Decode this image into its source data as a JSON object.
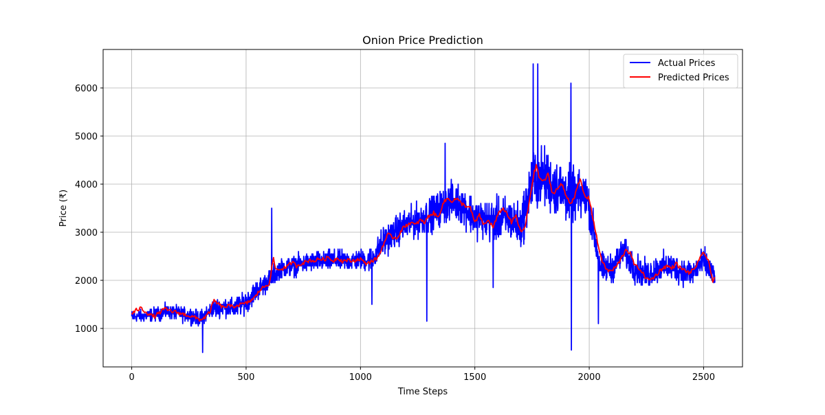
{
  "chart_data": {
    "type": "line",
    "title": "Onion Price Prediction",
    "xlabel": "Time Steps",
    "ylabel": "Price (₹)",
    "xlim": [
      -125,
      2670
    ],
    "ylim": [
      200,
      6800
    ],
    "xticks": [
      0,
      500,
      1000,
      1500,
      2000,
      2500
    ],
    "yticks": [
      1000,
      2000,
      3000,
      4000,
      5000,
      6000
    ],
    "grid": true,
    "legend_position": "top-right",
    "series": [
      {
        "name": "Actual Prices",
        "color": "#0000ff",
        "trend": [
          [
            0,
            1250
          ],
          [
            50,
            1250
          ],
          [
            100,
            1300
          ],
          [
            150,
            1350
          ],
          [
            200,
            1320
          ],
          [
            250,
            1280
          ],
          [
            300,
            1200
          ],
          [
            350,
            1400
          ],
          [
            400,
            1450
          ],
          [
            450,
            1420
          ],
          [
            500,
            1550
          ],
          [
            550,
            1800
          ],
          [
            600,
            2000
          ],
          [
            650,
            2250
          ],
          [
            700,
            2300
          ],
          [
            750,
            2350
          ],
          [
            800,
            2380
          ],
          [
            850,
            2400
          ],
          [
            900,
            2420
          ],
          [
            950,
            2400
          ],
          [
            1000,
            2420
          ],
          [
            1050,
            2450
          ],
          [
            1100,
            2800
          ],
          [
            1150,
            3000
          ],
          [
            1200,
            3150
          ],
          [
            1250,
            3250
          ],
          [
            1300,
            3350
          ],
          [
            1350,
            3500
          ],
          [
            1400,
            3650
          ],
          [
            1450,
            3550
          ],
          [
            1500,
            3300
          ],
          [
            1550,
            3250
          ],
          [
            1600,
            3250
          ],
          [
            1650,
            3300
          ],
          [
            1700,
            3100
          ],
          [
            1750,
            4050
          ],
          [
            1800,
            4150
          ],
          [
            1850,
            3950
          ],
          [
            1900,
            3800
          ],
          [
            1950,
            3750
          ],
          [
            1990,
            3750
          ],
          [
            2020,
            3000
          ],
          [
            2050,
            2250
          ],
          [
            2100,
            2250
          ],
          [
            2150,
            2600
          ],
          [
            2200,
            2250
          ],
          [
            2250,
            2100
          ],
          [
            2300,
            2250
          ],
          [
            2350,
            2300
          ],
          [
            2400,
            2200
          ],
          [
            2450,
            2150
          ],
          [
            2500,
            2400
          ],
          [
            2530,
            2200
          ],
          [
            2550,
            2050
          ]
        ],
        "noise": [
          [
            0,
            180
          ],
          [
            300,
            240
          ],
          [
            500,
            320
          ],
          [
            600,
            300
          ],
          [
            1000,
            300
          ],
          [
            1100,
            450
          ],
          [
            1300,
            520
          ],
          [
            1500,
            600
          ],
          [
            1650,
            650
          ],
          [
            1700,
            700
          ],
          [
            1750,
            900
          ],
          [
            1900,
            850
          ],
          [
            2000,
            600
          ],
          [
            2050,
            450
          ],
          [
            2300,
            420
          ],
          [
            2550,
            400
          ]
        ],
        "n_points": 2550,
        "spikes": [
          [
            1755,
            6500
          ],
          [
            1775,
            6500
          ],
          [
            1920,
            6100
          ],
          [
            1922,
            550
          ],
          [
            1370,
            4850
          ],
          [
            1050,
            1500
          ],
          [
            1290,
            1150
          ],
          [
            612,
            3500
          ],
          [
            1580,
            1850
          ],
          [
            2040,
            1100
          ],
          [
            310,
            500
          ]
        ]
      },
      {
        "name": "Predicted Prices",
        "color": "#ff0000",
        "points": [
          [
            0,
            1300
          ],
          [
            20,
            1380
          ],
          [
            40,
            1420
          ],
          [
            60,
            1350
          ],
          [
            80,
            1280
          ],
          [
            100,
            1250
          ],
          [
            120,
            1320
          ],
          [
            140,
            1400
          ],
          [
            160,
            1380
          ],
          [
            180,
            1350
          ],
          [
            200,
            1330
          ],
          [
            220,
            1300
          ],
          [
            240,
            1280
          ],
          [
            260,
            1250
          ],
          [
            280,
            1220
          ],
          [
            300,
            1180
          ],
          [
            320,
            1230
          ],
          [
            340,
            1330
          ],
          [
            360,
            1580
          ],
          [
            380,
            1500
          ],
          [
            400,
            1430
          ],
          [
            420,
            1470
          ],
          [
            440,
            1450
          ],
          [
            460,
            1480
          ],
          [
            480,
            1500
          ],
          [
            500,
            1520
          ],
          [
            520,
            1580
          ],
          [
            540,
            1650
          ],
          [
            560,
            1800
          ],
          [
            580,
            1870
          ],
          [
            600,
            1930
          ],
          [
            620,
            2450
          ],
          [
            630,
            2220
          ],
          [
            650,
            2230
          ],
          [
            680,
            2280
          ],
          [
            700,
            2380
          ],
          [
            720,
            2300
          ],
          [
            740,
            2350
          ],
          [
            760,
            2380
          ],
          [
            780,
            2420
          ],
          [
            800,
            2400
          ],
          [
            820,
            2450
          ],
          [
            840,
            2430
          ],
          [
            860,
            2480
          ],
          [
            880,
            2400
          ],
          [
            900,
            2470
          ],
          [
            920,
            2400
          ],
          [
            940,
            2420
          ],
          [
            960,
            2400
          ],
          [
            980,
            2420
          ],
          [
            1000,
            2450
          ],
          [
            1020,
            2350
          ],
          [
            1040,
            2380
          ],
          [
            1060,
            2420
          ],
          [
            1080,
            2500
          ],
          [
            1100,
            2750
          ],
          [
            1120,
            2950
          ],
          [
            1140,
            2900
          ],
          [
            1160,
            2880
          ],
          [
            1180,
            3050
          ],
          [
            1200,
            3150
          ],
          [
            1220,
            3200
          ],
          [
            1240,
            3150
          ],
          [
            1260,
            3250
          ],
          [
            1280,
            3200
          ],
          [
            1300,
            3350
          ],
          [
            1320,
            3400
          ],
          [
            1340,
            3300
          ],
          [
            1360,
            3600
          ],
          [
            1380,
            3700
          ],
          [
            1400,
            3650
          ],
          [
            1420,
            3700
          ],
          [
            1440,
            3600
          ],
          [
            1460,
            3550
          ],
          [
            1480,
            3500
          ],
          [
            1500,
            3200
          ],
          [
            1520,
            3350
          ],
          [
            1540,
            3150
          ],
          [
            1560,
            3250
          ],
          [
            1580,
            3100
          ],
          [
            1600,
            3350
          ],
          [
            1620,
            3500
          ],
          [
            1640,
            3400
          ],
          [
            1660,
            3200
          ],
          [
            1680,
            3350
          ],
          [
            1700,
            3000
          ],
          [
            1720,
            3100
          ],
          [
            1740,
            3700
          ],
          [
            1750,
            4000
          ],
          [
            1760,
            4250
          ],
          [
            1770,
            4400
          ],
          [
            1780,
            4150
          ],
          [
            1800,
            4050
          ],
          [
            1820,
            4200
          ],
          [
            1840,
            3800
          ],
          [
            1860,
            3900
          ],
          [
            1880,
            4000
          ],
          [
            1900,
            3750
          ],
          [
            1920,
            3600
          ],
          [
            1940,
            3800
          ],
          [
            1960,
            4100
          ],
          [
            1980,
            3750
          ],
          [
            2000,
            3700
          ],
          [
            2020,
            3200
          ],
          [
            2040,
            2700
          ],
          [
            2060,
            2350
          ],
          [
            2080,
            2200
          ],
          [
            2100,
            2200
          ],
          [
            2120,
            2300
          ],
          [
            2140,
            2450
          ],
          [
            2160,
            2650
          ],
          [
            2180,
            2550
          ],
          [
            2200,
            2300
          ],
          [
            2220,
            2250
          ],
          [
            2240,
            2100
          ],
          [
            2260,
            2000
          ],
          [
            2280,
            2050
          ],
          [
            2300,
            2150
          ],
          [
            2320,
            2250
          ],
          [
            2340,
            2300
          ],
          [
            2360,
            2250
          ],
          [
            2380,
            2350
          ],
          [
            2400,
            2250
          ],
          [
            2420,
            2200
          ],
          [
            2440,
            2150
          ],
          [
            2460,
            2250
          ],
          [
            2480,
            2400
          ],
          [
            2500,
            2600
          ],
          [
            2520,
            2400
          ],
          [
            2540,
            2000
          ],
          [
            2550,
            2100
          ]
        ]
      }
    ]
  }
}
